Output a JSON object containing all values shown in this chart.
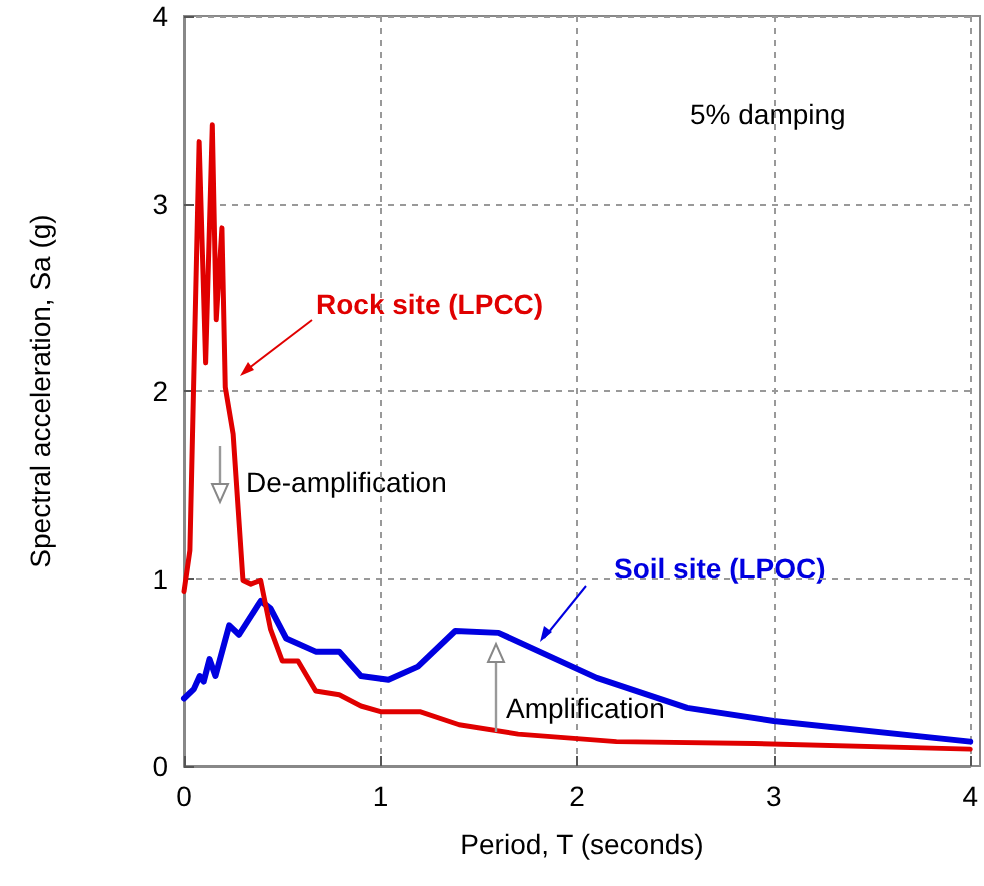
{
  "chart_data": {
    "type": "line",
    "xlabel": "Period, T (seconds)",
    "ylabel": "Spectral acceleration, Sa (g)",
    "xlim": [
      0,
      4
    ],
    "xticks": [
      0,
      1,
      2,
      3,
      4
    ],
    "ylim": [
      0,
      4
    ],
    "yticks": [
      0,
      1,
      2,
      3,
      4
    ],
    "grid": true,
    "legend": false,
    "marker": "none",
    "line_style": "solid",
    "annotations": [
      "5% damping",
      "De-amplification",
      "Amplification"
    ],
    "series": [
      {
        "name": "Rock site (LPCC)",
        "color": "#e00000",
        "x": [
          0,
          0.03,
          0.077,
          0.11,
          0.144,
          0.164,
          0.193,
          0.21,
          0.25,
          0.3,
          0.34,
          0.39,
          0.44,
          0.5,
          0.58,
          0.67,
          0.79,
          0.9,
          1.0,
          1.2,
          1.4,
          1.7,
          2.2,
          2.9,
          4.0
        ],
        "values": [
          0.93,
          1.15,
          3.33,
          2.15,
          3.42,
          2.38,
          2.87,
          2.02,
          1.77,
          0.99,
          0.97,
          0.99,
          0.73,
          0.56,
          0.56,
          0.4,
          0.38,
          0.32,
          0.29,
          0.29,
          0.22,
          0.17,
          0.13,
          0.12,
          0.09
        ]
      },
      {
        "name": "Soil site (LPOC)",
        "color": "#0000e0",
        "x": [
          0,
          0.05,
          0.08,
          0.1,
          0.13,
          0.16,
          0.23,
          0.28,
          0.39,
          0.44,
          0.52,
          0.67,
          0.79,
          0.9,
          1.04,
          1.19,
          1.38,
          1.6,
          2.1,
          2.56,
          3.0,
          4.0
        ],
        "values": [
          0.36,
          0.41,
          0.48,
          0.45,
          0.57,
          0.48,
          0.75,
          0.7,
          0.88,
          0.84,
          0.68,
          0.61,
          0.61,
          0.48,
          0.46,
          0.53,
          0.72,
          0.71,
          0.47,
          0.31,
          0.24,
          0.13
        ]
      }
    ]
  }
}
